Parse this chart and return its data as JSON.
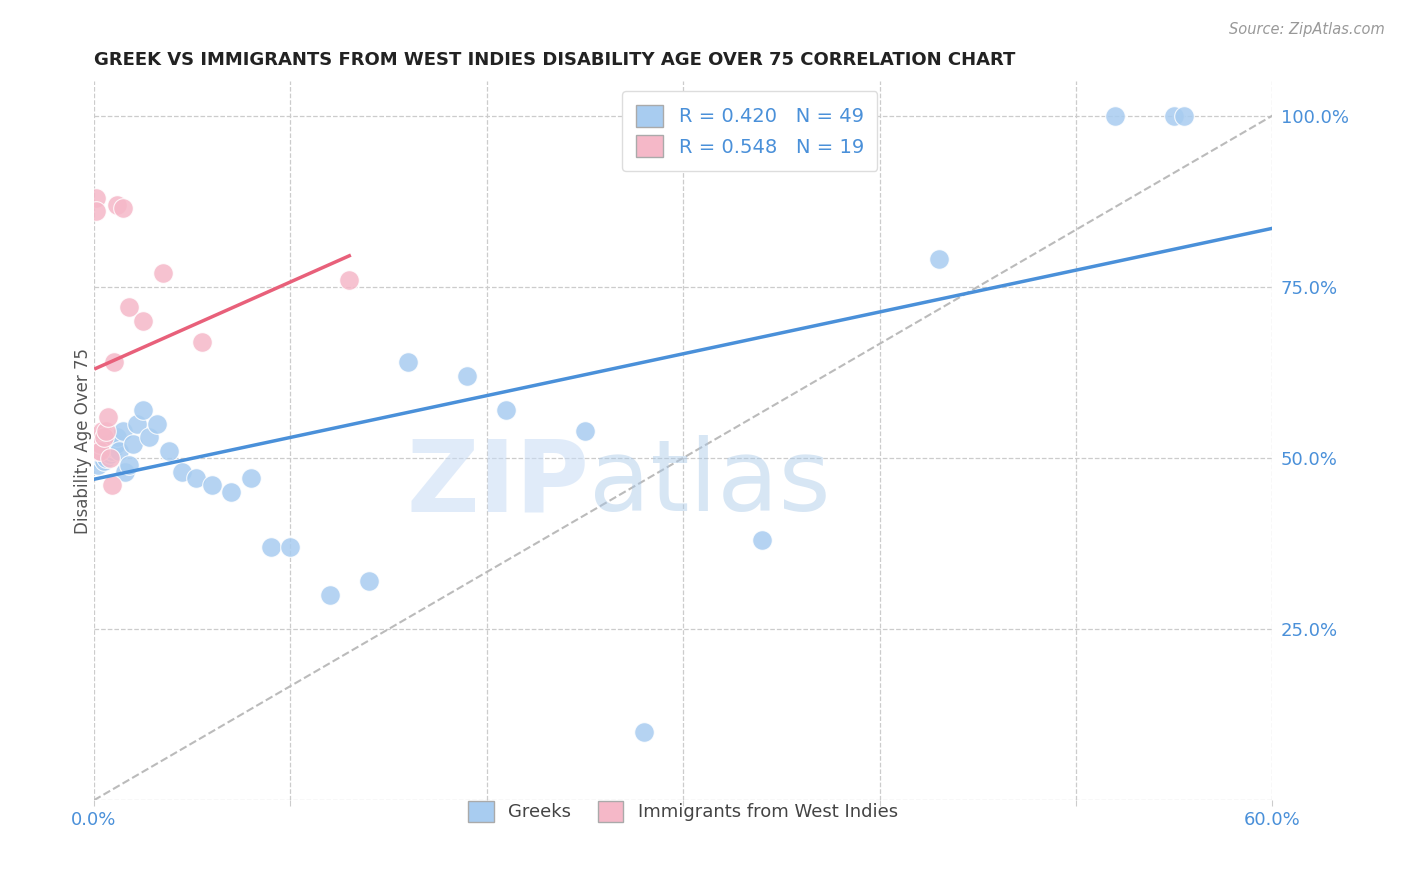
{
  "title": "GREEK VS IMMIGRANTS FROM WEST INDIES DISABILITY AGE OVER 75 CORRELATION CHART",
  "source": "Source: ZipAtlas.com",
  "ylabel": "Disability Age Over 75",
  "xmin": 0.0,
  "xmax": 0.6,
  "ymin": 0.0,
  "ymax": 1.05,
  "xticks": [
    0.0,
    0.1,
    0.2,
    0.3,
    0.4,
    0.5,
    0.6
  ],
  "ytick_positions": [
    0.0,
    0.25,
    0.5,
    0.75,
    1.0
  ],
  "ytick_labels": [
    "",
    "25.0%",
    "50.0%",
    "75.0%",
    "100.0%"
  ],
  "blue_R": 0.42,
  "blue_N": 49,
  "pink_R": 0.548,
  "pink_N": 19,
  "blue_color": "#A8CCF0",
  "pink_color": "#F5B8C8",
  "blue_line_color": "#4A90D9",
  "pink_line_color": "#E8607A",
  "diagonal_color": "#BBBBBB",
  "watermark_zip": "ZIP",
  "watermark_atlas": "atlas",
  "blue_x": [
    0.001,
    0.002,
    0.002,
    0.003,
    0.003,
    0.003,
    0.004,
    0.004,
    0.005,
    0.005,
    0.005,
    0.006,
    0.006,
    0.007,
    0.007,
    0.008,
    0.009,
    0.01,
    0.011,
    0.012,
    0.013,
    0.015,
    0.016,
    0.018,
    0.02,
    0.022,
    0.025,
    0.028,
    0.032,
    0.038,
    0.045,
    0.052,
    0.06,
    0.07,
    0.08,
    0.09,
    0.1,
    0.12,
    0.14,
    0.16,
    0.19,
    0.21,
    0.25,
    0.28,
    0.34,
    0.43,
    0.52,
    0.55,
    0.555
  ],
  "blue_y": [
    0.5,
    0.49,
    0.51,
    0.505,
    0.52,
    0.51,
    0.5,
    0.515,
    0.505,
    0.495,
    0.52,
    0.51,
    0.5,
    0.51,
    0.52,
    0.505,
    0.51,
    0.515,
    0.52,
    0.53,
    0.51,
    0.54,
    0.48,
    0.49,
    0.52,
    0.55,
    0.57,
    0.53,
    0.55,
    0.51,
    0.48,
    0.47,
    0.46,
    0.45,
    0.47,
    0.37,
    0.37,
    0.3,
    0.32,
    0.64,
    0.62,
    0.57,
    0.54,
    0.1,
    0.38,
    0.79,
    1.0,
    1.0,
    1.0
  ],
  "pink_x": [
    0.001,
    0.001,
    0.002,
    0.003,
    0.003,
    0.004,
    0.005,
    0.006,
    0.007,
    0.008,
    0.009,
    0.01,
    0.012,
    0.015,
    0.018,
    0.025,
    0.035,
    0.055,
    0.13
  ],
  "pink_y": [
    0.88,
    0.86,
    0.51,
    0.52,
    0.51,
    0.54,
    0.53,
    0.54,
    0.56,
    0.5,
    0.46,
    0.64,
    0.87,
    0.865,
    0.72,
    0.7,
    0.77,
    0.67,
    0.76
  ]
}
